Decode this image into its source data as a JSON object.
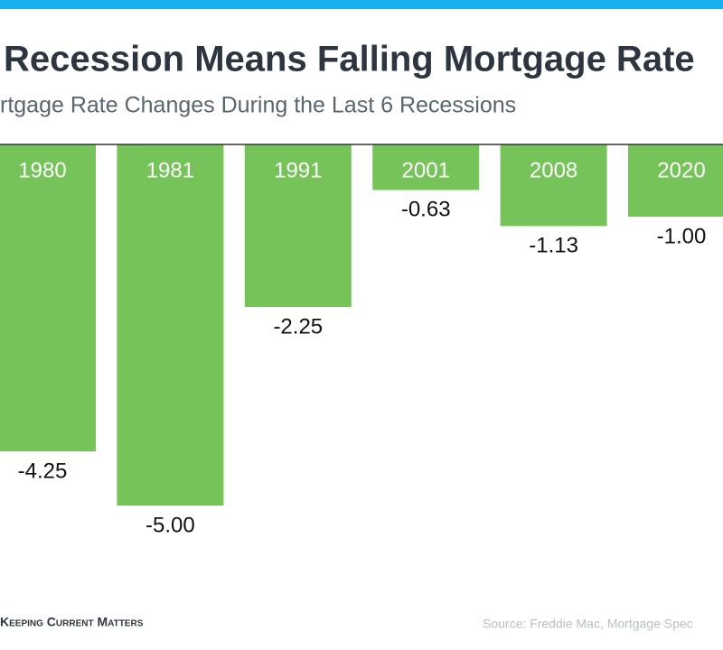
{
  "chart_data": {
    "type": "bar",
    "title": "Recession Means Falling Mortgage Rate",
    "subtitle": "rtgage Rate Changes During the Last 6 Recessions",
    "categories": [
      "1980",
      "1981",
      "1991",
      "2001",
      "2008",
      "2020"
    ],
    "values": [
      -4.25,
      -5,
      -2.25,
      -0.63,
      -1.13,
      -1
    ],
    "value_labels": [
      "-4.25",
      "-5.00",
      "-2.25",
      "-0.63",
      "-1.13",
      "-1.00"
    ],
    "color": "#76c35a",
    "ylim": [
      -7,
      0
    ],
    "logo": "Keeping Current Matters",
    "source": "Source: Freddie Mac, Mortgage Spec"
  }
}
